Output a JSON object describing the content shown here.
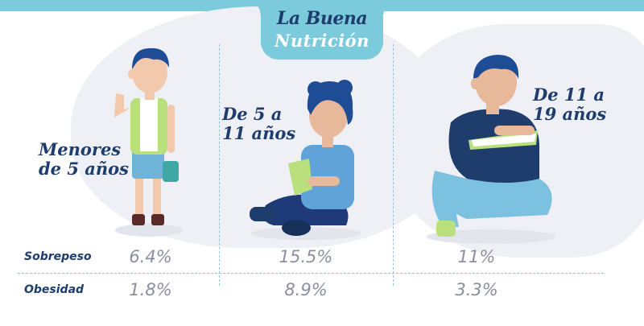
{
  "brand": {
    "line1": "La Buena",
    "line2": "Nutrición",
    "colors": {
      "navy": "#1e3d6d",
      "teal": "#7ccbdc",
      "gray_text": "#8a8fa0"
    }
  },
  "groups": [
    {
      "label": "Menores\nde 5 años",
      "sobrepeso": "6.4%",
      "obesidad": "1.8%"
    },
    {
      "label": "De 5 a\n11 años",
      "sobrepeso": "15.5%",
      "obesidad": "8.9%"
    },
    {
      "label": "De 11 a\n19 años",
      "sobrepeso": "11%",
      "obesidad": "3.3%"
    }
  ],
  "rows": {
    "sobrepeso": "Sobrepeso",
    "obesidad": "Obesidad"
  },
  "icons": [
    "toddler-illustration",
    "child-reading-illustration",
    "teen-reading-illustration"
  ]
}
